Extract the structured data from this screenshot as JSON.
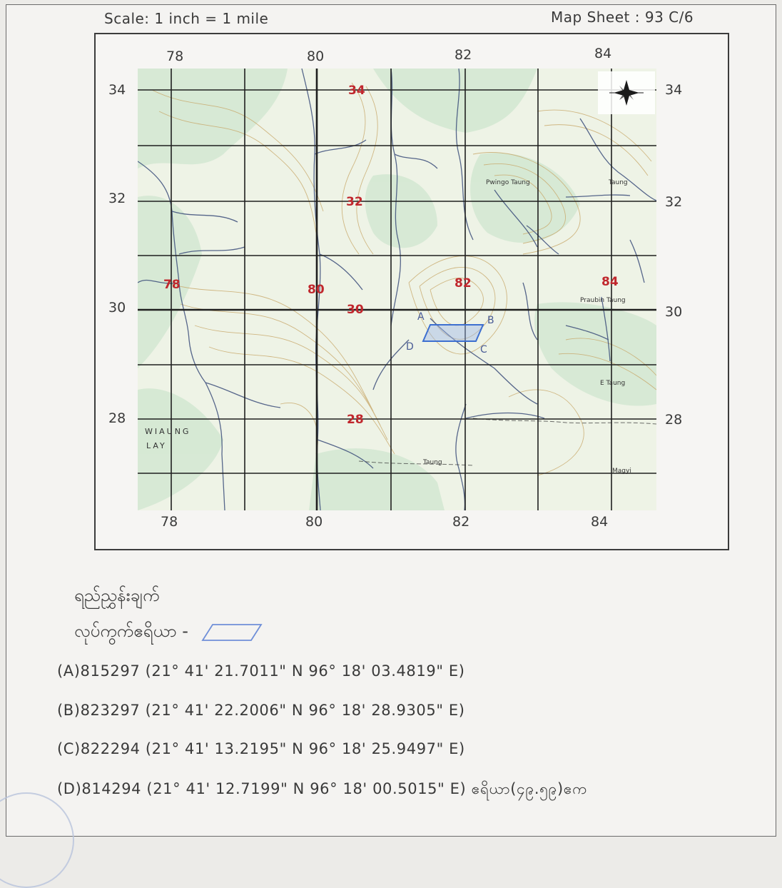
{
  "header": {
    "scale": "Scale: 1 inch = 1 mile",
    "map_sheet": "Map Sheet : 93 C/6"
  },
  "map": {
    "easting_ticks_top": [
      "78",
      "80",
      "82",
      "84"
    ],
    "easting_ticks_bottom": [
      "78",
      "80",
      "82",
      "84"
    ],
    "northing_ticks_left": [
      "34",
      "32",
      "30",
      "28"
    ],
    "northing_ticks_right": [
      "34",
      "32",
      "30",
      "28"
    ],
    "grid_labels_red": [
      "34",
      "32",
      "78",
      "80",
      "82",
      "84",
      "30",
      "28"
    ],
    "point_labels": [
      "A",
      "B",
      "C",
      "D"
    ],
    "place_labels": [
      "Pwingo Taung",
      "Taung",
      "Praubin Taung",
      "E Taung",
      "Magyi",
      "Taung",
      "WIAUNG",
      "LAY"
    ],
    "colors": {
      "red_grid_label": "#c0272d",
      "contour": "#c8a86a",
      "vegetation": "#cfe6cf",
      "stream": "#3b4d7a",
      "grid": "#1f1f1f",
      "polygon": "#3d6fd0"
    },
    "north_arrow_icon": "compass-star-icon"
  },
  "legend": {
    "title": "ရည်ညွှန်းချက်",
    "area_label": "လုပ်ကွက်ဧရိယာ -"
  },
  "coordinates": [
    "(A)815297 (21° 41' 21.7011\" N 96° 18' 03.4819\" E)",
    "(B)823297 (21° 41' 22.2006\" N 96° 18' 28.9305\" E)",
    "(C)822294 (21° 41' 13.2195\" N 96° 18' 25.9497\" E)",
    "(D)814294 (21° 41' 12.7199\" N 96° 18' 00.5015\" E) ဧရိယာ(၄၉.၅၉)ဧက"
  ]
}
